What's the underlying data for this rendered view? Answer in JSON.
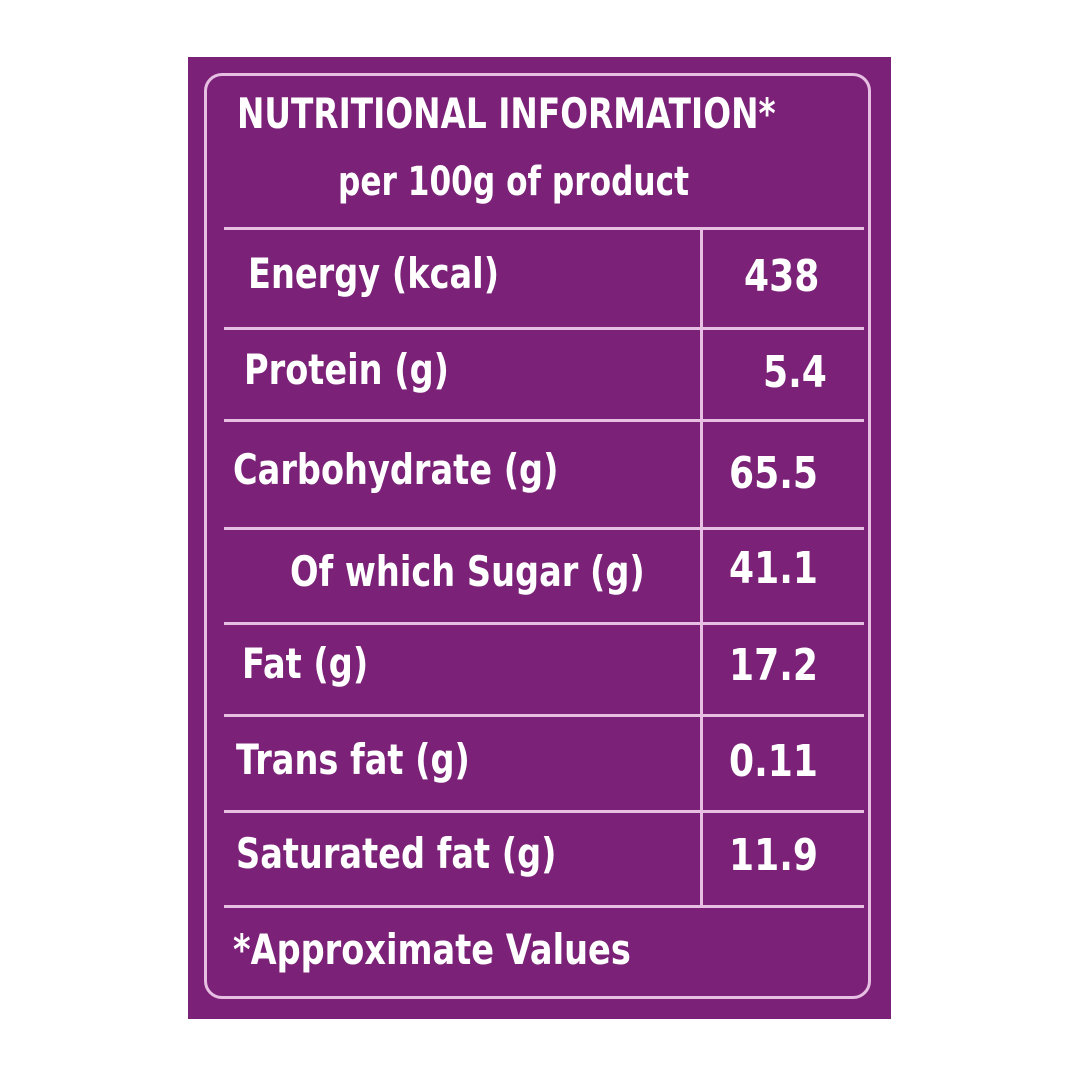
{
  "header": {
    "title": "NUTRITIONAL INFORMATION*",
    "subtitle": "per 100g of product"
  },
  "rows": [
    {
      "label": "Energy (kcal)",
      "value": "438"
    },
    {
      "label": "Protein (g)",
      "value": "5.4"
    },
    {
      "label": "Carbohydrate (g)",
      "value": "65.5"
    },
    {
      "label": "Of which Sugar (g)",
      "value": "41.1"
    },
    {
      "label": "Fat (g)",
      "value": "17.2"
    },
    {
      "label": "Trans fat (g)",
      "value": "0.11"
    },
    {
      "label": "Saturated fat (g)",
      "value": "11.9"
    }
  ],
  "footnote": "*Approximate Values",
  "colors": {
    "background": "#7b2278",
    "border": "#e6bfe2",
    "text": "#ffffff"
  }
}
